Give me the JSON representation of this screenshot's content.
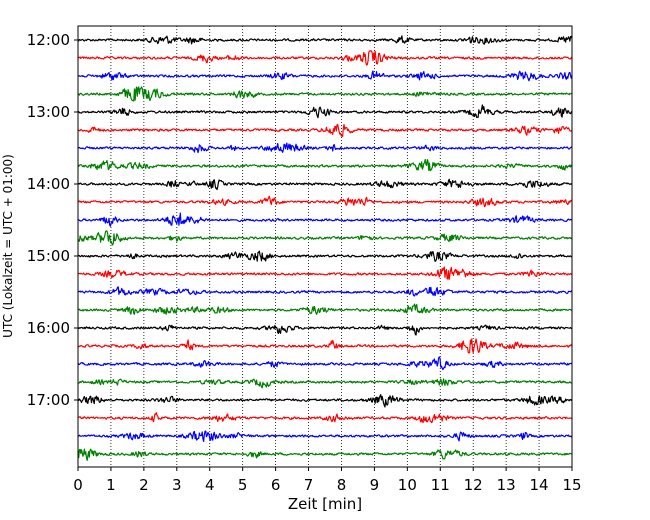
{
  "chart_data": {
    "type": "line",
    "title": "",
    "xlabel": "Zeit  [min]",
    "ylabel": "UTC (Lokalzeit = UTC + 01:00)",
    "xlim": [
      0,
      15
    ],
    "x_ticks": [
      "0",
      "1",
      "2",
      "3",
      "4",
      "5",
      "6",
      "7",
      "8",
      "9",
      "10",
      "11",
      "12",
      "13",
      "14",
      "15"
    ],
    "y_ticks": [
      "12:00",
      "13:00",
      "14:00",
      "15:00",
      "16:00",
      "17:00"
    ],
    "grid": "vertical dotted",
    "line_colors": [
      "#000000",
      "#ff0000",
      "#0000ff",
      "#008000"
    ],
    "traces": [
      {
        "start": "12:00",
        "color": "#000000"
      },
      {
        "start": "12:15",
        "color": "#ff0000"
      },
      {
        "start": "12:30",
        "color": "#0000ff"
      },
      {
        "start": "12:45",
        "color": "#008000"
      },
      {
        "start": "13:00",
        "color": "#000000"
      },
      {
        "start": "13:15",
        "color": "#ff0000"
      },
      {
        "start": "13:30",
        "color": "#0000ff"
      },
      {
        "start": "13:45",
        "color": "#008000"
      },
      {
        "start": "14:00",
        "color": "#000000"
      },
      {
        "start": "14:15",
        "color": "#ff0000"
      },
      {
        "start": "14:30",
        "color": "#0000ff"
      },
      {
        "start": "14:45",
        "color": "#008000"
      },
      {
        "start": "15:00",
        "color": "#000000"
      },
      {
        "start": "15:15",
        "color": "#ff0000"
      },
      {
        "start": "15:30",
        "color": "#0000ff"
      },
      {
        "start": "15:45",
        "color": "#008000"
      },
      {
        "start": "16:00",
        "color": "#000000"
      },
      {
        "start": "16:15",
        "color": "#ff0000"
      },
      {
        "start": "16:30",
        "color": "#0000ff"
      },
      {
        "start": "16:45",
        "color": "#008000"
      },
      {
        "start": "17:00",
        "color": "#000000"
      },
      {
        "start": "17:15",
        "color": "#ff0000"
      },
      {
        "start": "17:30",
        "color": "#0000ff"
      },
      {
        "start": "17:45",
        "color": "#008000"
      }
    ]
  }
}
